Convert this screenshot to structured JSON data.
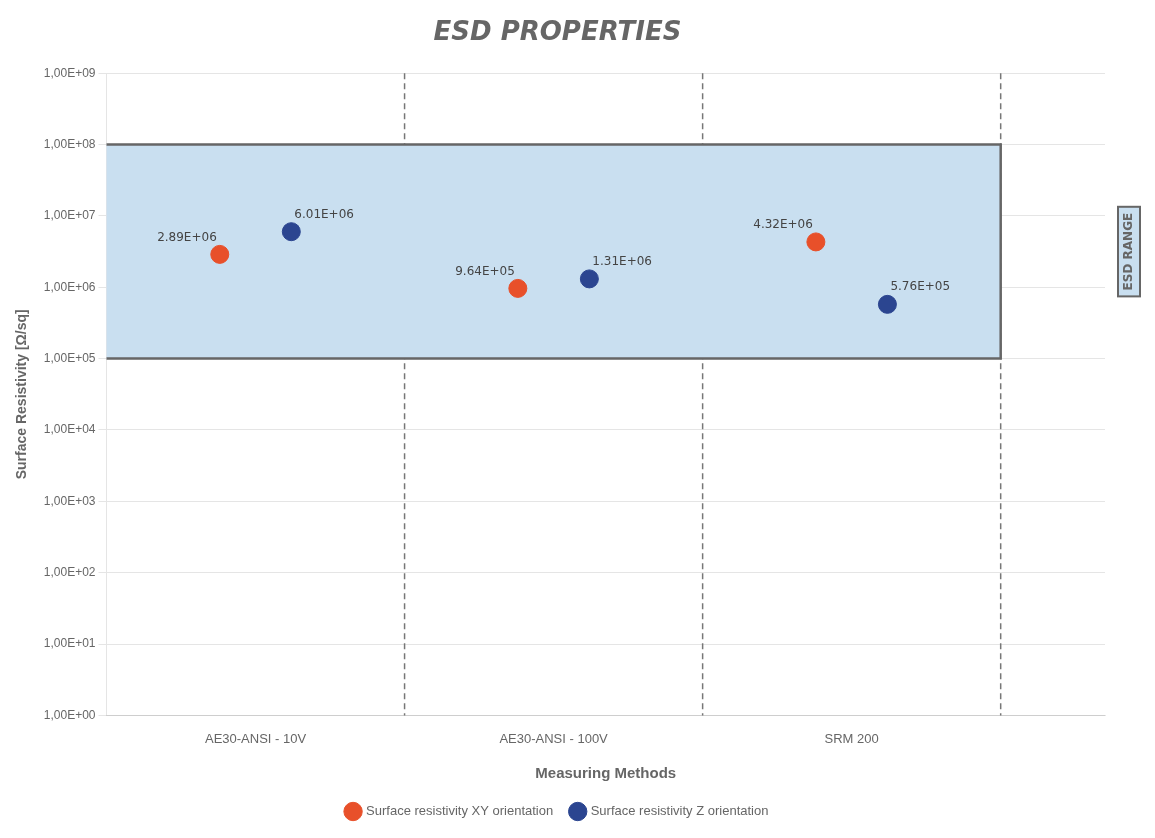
{
  "chart_data": {
    "type": "scatter",
    "title": "ESD PROPERTIES",
    "x_label": "Measuring Methods",
    "y_label": "Surface Resistivity [Ω/sq]",
    "categories": [
      "AE30-ANSI - 10V",
      "AE30-ANSI - 100V",
      "SRM 200"
    ],
    "series": [
      {
        "name": "Surface resistivity XY orientation",
        "color": "#E8502A",
        "values": [
          2890000,
          964000,
          4320000
        ],
        "value_labels": [
          "2.89E+06",
          "9.64E+05",
          "4.32E+06"
        ]
      },
      {
        "name": "Surface resistivity Z orientation",
        "color": "#2B4590",
        "values": [
          6010000,
          1310000,
          576000
        ],
        "value_labels": [
          "6.01E+06",
          "1.31E+06",
          "5.76E+05"
        ]
      }
    ],
    "log": "y",
    "ylim": [
      1,
      1000000000
    ],
    "yticks": [
      {
        "value": 1,
        "label": "1,00E+00"
      },
      {
        "value": 10,
        "label": "1,00E+01"
      },
      {
        "value": 100,
        "label": "1,00E+02"
      },
      {
        "value": 1000,
        "label": "1,00E+03"
      },
      {
        "value": 10000,
        "label": "1,00E+04"
      },
      {
        "value": 100000,
        "label": "1,00E+05"
      },
      {
        "value": 1000000,
        "label": "1,00E+06"
      },
      {
        "value": 10000000,
        "label": "1,00E+07"
      },
      {
        "value": 100000000,
        "label": "1,00E+08"
      },
      {
        "value": 1000000000,
        "label": "1,00E+09"
      }
    ],
    "grid": "y",
    "legend": "bottom",
    "data_labels": true,
    "marker": "circle",
    "annotations": [
      {
        "text": "ESD RANGE",
        "y_from": 100000,
        "y_to": 100000000,
        "color": "#C9DFF0"
      }
    ]
  }
}
